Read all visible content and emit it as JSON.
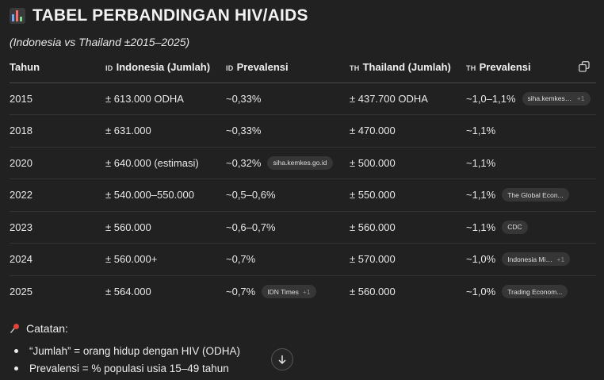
{
  "title": "TABEL PERBANDINGAN HIV/AIDS",
  "subtitle": "(Indonesia vs Thailand ±2015–2025)",
  "table": {
    "headers": [
      {
        "flag": "",
        "label": "Tahun"
      },
      {
        "flag": "ID",
        "label": "Indonesia (Jumlah)"
      },
      {
        "flag": "ID",
        "label": "Prevalensi"
      },
      {
        "flag": "TH",
        "label": "Thailand (Jumlah)"
      },
      {
        "flag": "TH",
        "label": "Prevalensi"
      }
    ],
    "rows": [
      {
        "year": "2015",
        "id_count": "± 613.000 ODHA",
        "id_prev": "~0,33%",
        "id_chip": "",
        "id_chip_plus": "",
        "th_count": "± 437.700 ODHA",
        "th_prev": "~1,0–1,1%",
        "th_chip": "siha.kemkes.go.id",
        "th_chip_plus": "+1"
      },
      {
        "year": "2018",
        "id_count": "± 631.000",
        "id_prev": "~0,33%",
        "id_chip": "",
        "id_chip_plus": "",
        "th_count": "± 470.000",
        "th_prev": "~1,1%",
        "th_chip": "",
        "th_chip_plus": ""
      },
      {
        "year": "2020",
        "id_count": "± 640.000 (estimasi)",
        "id_prev": "~0,32%",
        "id_chip": "siha.kemkes.go.id",
        "id_chip_plus": "",
        "th_count": "± 500.000",
        "th_prev": "~1,1%",
        "th_chip": "",
        "th_chip_plus": ""
      },
      {
        "year": "2022",
        "id_count": "± 540.000–550.000",
        "id_prev": "~0,5–0,6%",
        "id_chip": "",
        "id_chip_plus": "",
        "th_count": "± 550.000",
        "th_prev": "~1,1%",
        "th_chip": "The Global Econ...",
        "th_chip_plus": ""
      },
      {
        "year": "2023",
        "id_count": "± 560.000",
        "id_prev": "~0,6–0,7%",
        "id_chip": "",
        "id_chip_plus": "",
        "th_count": "± 560.000",
        "th_prev": "~1,1%",
        "th_chip": "CDC",
        "th_chip_plus": ""
      },
      {
        "year": "2024",
        "id_count": "± 560.000+",
        "id_prev": "~0,7%",
        "id_chip": "",
        "id_chip_plus": "",
        "th_count": "± 570.000",
        "th_prev": "~1,0%",
        "th_chip": "Indonesia Minist...",
        "th_chip_plus": "+1"
      },
      {
        "year": "2025",
        "id_count": "± 564.000",
        "id_prev": "~0,7%",
        "id_chip": "IDN Times",
        "id_chip_plus": "+1",
        "th_count": "± 560.000",
        "th_prev": "~1,0%",
        "th_chip": "Trading Econom...",
        "th_chip_plus": ""
      }
    ]
  },
  "notes": {
    "title": "Catatan:",
    "items": [
      "“Jumlah” = orang hidup dengan HIV (ODHA)",
      "Prevalensi = % populasi usia 15–49 tahun"
    ]
  },
  "icons": {
    "title": "bar-chart-icon",
    "copy": "copy-icon",
    "notes": "pushpin-icon",
    "scroll": "arrow-down-icon"
  },
  "colors": {
    "background": "#212121",
    "chip": "#363636",
    "pin": "#e0453a"
  }
}
